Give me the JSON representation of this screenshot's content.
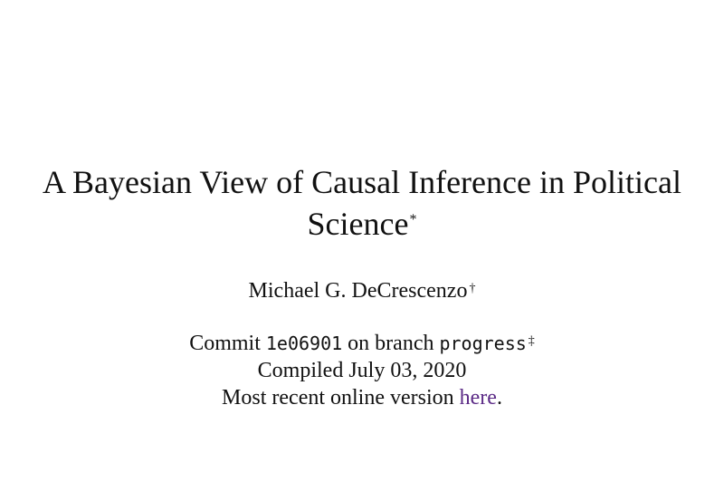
{
  "paper": {
    "title": "A Bayesian View of Causal Inference in Political Science",
    "title_mark": "*",
    "author": "Michael G. DeCrescenzo",
    "author_mark": "†",
    "commit": {
      "prefix": "Commit",
      "hash": "1e06901",
      "middle": "on branch",
      "branch": "progress",
      "mark": "‡"
    },
    "compiled": "Compiled July 03, 2020",
    "version": {
      "prefix": "Most recent online version",
      "link_text": "here",
      "suffix": ".",
      "link_color": "#5b2a86"
    }
  }
}
